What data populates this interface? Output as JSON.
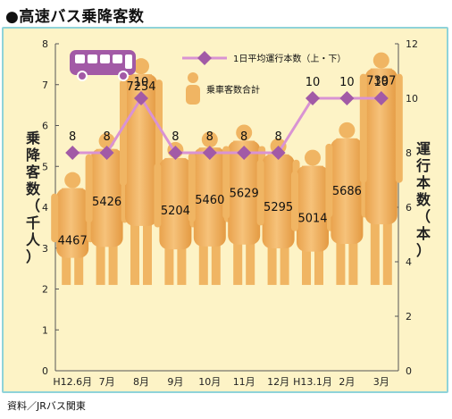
{
  "title": "●高速バス乗降客数",
  "source": "資料／JRバス関東",
  "chart_data": {
    "type": "bar",
    "categories": [
      "H12.6月",
      "7月",
      "8月",
      "9月",
      "10月",
      "11月",
      "12月",
      "H13.1月",
      "2月",
      "3月"
    ],
    "left_axis": {
      "label": "乗降客数（千人）",
      "range": [
        0,
        8
      ],
      "ticks": [
        "0",
        "1",
        "2",
        "3",
        "4",
        "5",
        "6",
        "7",
        "8"
      ]
    },
    "right_axis": {
      "label": "運行本数（本）",
      "range": [
        0,
        12
      ],
      "ticks": [
        "0",
        "2",
        "4",
        "6",
        "8",
        "10",
        "12"
      ]
    },
    "series": [
      {
        "name": "乗車客数合計",
        "kind": "bar",
        "axis": "left",
        "color": "#f0b563",
        "values": [
          4467,
          5426,
          7254,
          5204,
          5460,
          5629,
          5295,
          5014,
          5686,
          7397
        ],
        "labels": [
          "4467",
          "5426",
          "7254",
          "5204",
          "5460",
          "5629",
          "5295",
          "5014",
          "5686",
          "7397"
        ]
      },
      {
        "name": "1日平均運行本数（上・下）",
        "kind": "line",
        "axis": "right",
        "color": "#a25aa6",
        "values": [
          8,
          8,
          10,
          8,
          8,
          8,
          8,
          10,
          10,
          10
        ],
        "labels": [
          "8",
          "8",
          "10",
          "8",
          "8",
          "8",
          "8",
          "10",
          "10",
          "10"
        ]
      }
    ],
    "grid": false,
    "legend": "top"
  }
}
